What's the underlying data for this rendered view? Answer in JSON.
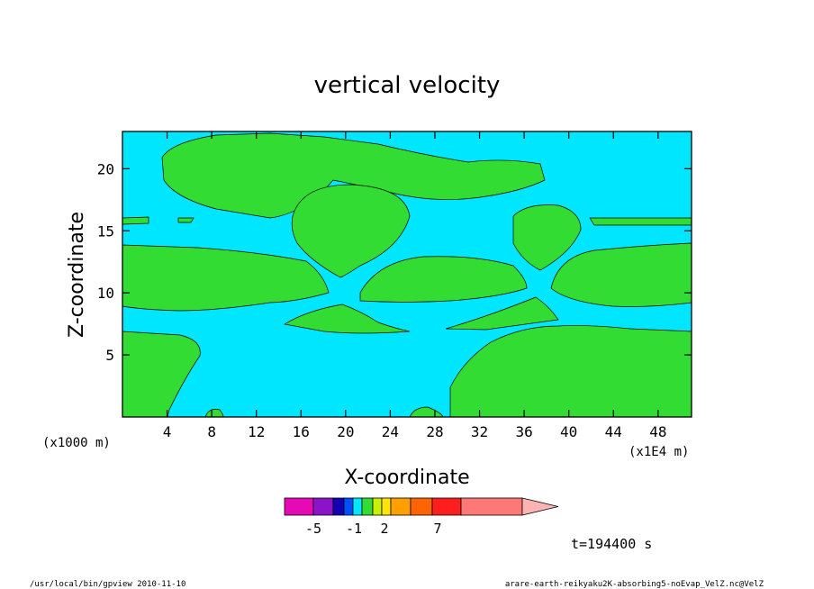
{
  "chart_data": {
    "type": "heatmap",
    "title": "vertical velocity",
    "xlabel": "X-coordinate",
    "ylabel": "Z-coordinate",
    "x_unit_left": "(x1000 m)",
    "x_unit_right": "(x1E4 m)",
    "xlim": [
      0,
      51
    ],
    "ylim": [
      0,
      23
    ],
    "x_ticks": [
      4,
      8,
      12,
      16,
      20,
      24,
      28,
      32,
      36,
      40,
      44,
      48
    ],
    "y_ticks": [
      5,
      10,
      15,
      20
    ],
    "colorbar": {
      "colors": [
        "#e60ab4",
        "#8c14c8",
        "#1400b4",
        "#0050ff",
        "#00e6ff",
        "#32dc32",
        "#c8f000",
        "#ffe600",
        "#ffa000",
        "#ff6400",
        "#ff1e1e",
        "#ff7878",
        "#ffb4b4"
      ],
      "labels": [
        "-5",
        "-1",
        "2",
        "7"
      ]
    },
    "time_label": "t=194400 s",
    "field_colors": {
      "negative": "#00e6ff",
      "positive": "#32dc32"
    }
  },
  "footer": {
    "left": "/usr/local/bin/gpview  2010-11-10",
    "right": "arare-earth-reikyaku2K-absorbing5-noEvap_VelZ.nc@VelZ"
  }
}
